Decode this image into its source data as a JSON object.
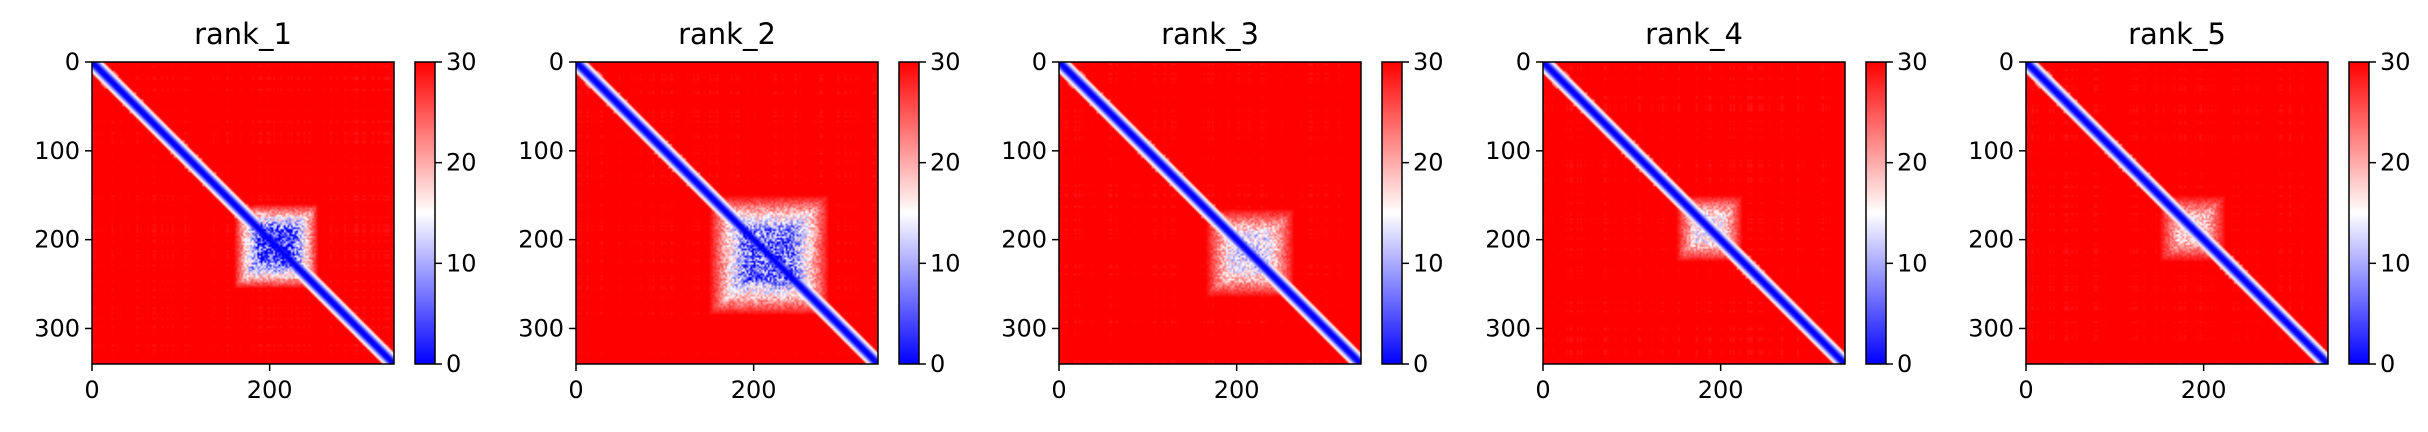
{
  "chart_data": [
    {
      "type": "heatmap",
      "title": "rank_1",
      "xlabel": "",
      "ylabel": "",
      "matrix_size": 340,
      "xticks": [
        0,
        200
      ],
      "yticks": [
        0,
        100,
        200,
        300
      ],
      "colorbar": {
        "ticks": [
          0,
          10,
          20,
          30
        ],
        "vmin": 0,
        "vmax": 30,
        "colormap": "bwr"
      },
      "low_region": [
        160,
        255
      ],
      "low_region_strength": 0.9
    },
    {
      "type": "heatmap",
      "title": "rank_2",
      "xlabel": "",
      "ylabel": "",
      "matrix_size": 340,
      "xticks": [
        0,
        200
      ],
      "yticks": [
        0,
        100,
        200,
        300
      ],
      "colorbar": {
        "ticks": [
          0,
          10,
          20,
          30
        ],
        "vmin": 0,
        "vmax": 30,
        "colormap": "bwr"
      },
      "low_region": [
        150,
        285
      ],
      "low_region_strength": 0.8
    },
    {
      "type": "heatmap",
      "title": "rank_3",
      "xlabel": "",
      "ylabel": "",
      "matrix_size": 340,
      "xticks": [
        0,
        200
      ],
      "yticks": [
        0,
        100,
        200,
        300
      ],
      "colorbar": {
        "ticks": [
          0,
          10,
          20,
          30
        ],
        "vmin": 0,
        "vmax": 30,
        "colormap": "bwr"
      },
      "low_region": [
        165,
        265
      ],
      "low_region_strength": 0.55
    },
    {
      "type": "heatmap",
      "title": "rank_4",
      "xlabel": "",
      "ylabel": "",
      "matrix_size": 340,
      "xticks": [
        0,
        200
      ],
      "yticks": [
        0,
        100,
        200,
        300
      ],
      "colorbar": {
        "ticks": [
          0,
          10,
          20,
          30
        ],
        "vmin": 0,
        "vmax": 30,
        "colormap": "bwr"
      },
      "low_region": [
        150,
        225
      ],
      "low_region_strength": 0.5
    },
    {
      "type": "heatmap",
      "title": "rank_5",
      "xlabel": "",
      "ylabel": "",
      "matrix_size": 340,
      "xticks": [
        0,
        200
      ],
      "yticks": [
        0,
        100,
        200,
        300
      ],
      "colorbar": {
        "ticks": [
          0,
          10,
          20,
          30
        ],
        "vmin": 0,
        "vmax": 30,
        "colormap": "bwr"
      },
      "low_region": [
        150,
        225
      ],
      "low_region_strength": 0.4
    }
  ]
}
